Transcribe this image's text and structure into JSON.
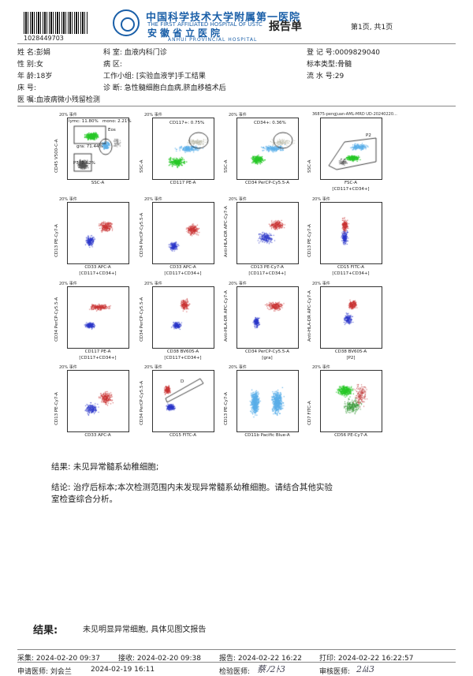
{
  "header": {
    "barcode_number": "1028449703",
    "hospital_name_cn": "中国科学技术大学附属第一医院",
    "hospital_name_en": "THE FIRST AFFILIATED HOSPITAL OF USTC",
    "hospital_name_cn2": "安徽省立医院",
    "hospital_name_en2": "ANHUI PROVINCIAL HOSPITAL",
    "report_title": "报告单",
    "page_info": "第1页, 共1页"
  },
  "patient": {
    "name": "姓   名:彭娟",
    "sex": "性   别:女",
    "age": "年   龄:18岁",
    "bed": "床   号:",
    "advice": "医   嘱:血液病微小残留检测",
    "department": "科         室:   血液内科门诊",
    "ward": "病         区:",
    "work_group": "工作小组:   [实验血液学]手工结果",
    "diagnosis": "诊         断:   急性髓细胞白血病,脐血移植术后",
    "reg_no": "登 记 号:0009829040",
    "specimen_type": "标本类型:骨髓",
    "serial_no": "流 水 号:29"
  },
  "plots": [
    {
      "x": "SSC-A",
      "x2": "",
      "y": "CD45 V500-C-A",
      "top": "20% 事件",
      "gates": [
        "lymc: 11.80%",
        "mono: 2.21%",
        "Eos",
        "gra: 71.44%",
        "P3: 7.62%"
      ]
    },
    {
      "x": "CD117 PE-A",
      "x2": "",
      "y": "SSC-A",
      "top": "20% 事件",
      "gates": [
        "CD117+: 0.75%"
      ]
    },
    {
      "x": "CD34 PerCP-Cy5.5-A",
      "x2": "",
      "y": "SSC-A",
      "top": "20% 事件",
      "gates": [
        "CD34+: 0.36%"
      ]
    },
    {
      "x": "FSC-A",
      "x2": "[CD117+CD34+]",
      "y": "SSC-A",
      "top": "36875-pengjuan-AML-MRD UD-20240220...",
      "gates": [
        "P2"
      ]
    },
    {
      "x": "CD33 APC-A",
      "x2": "[CD117+CD34+]",
      "y": "CD13 PE-Cy7-A",
      "top": "20% 事件",
      "gates": []
    },
    {
      "x": "CD33 APC-A",
      "x2": "[CD117+CD34+]",
      "y": "CD34 PerCP-Cy5.5-A",
      "top": "20% 事件",
      "gates": []
    },
    {
      "x": "CD13 PE-Cy7-A",
      "x2": "[CD117+CD34+]",
      "y": "Anti-HLA-DR APC-Cy7-A",
      "top": "20% 事件",
      "gates": []
    },
    {
      "x": "CD15 FITC-A",
      "x2": "[CD117+CD34+]",
      "y": "CD13 PE-Cy7-A",
      "top": "20% 事件",
      "gates": []
    },
    {
      "x": "CD117 PE-A",
      "x2": "[CD117+CD34+]",
      "y": "CD34 PerCP-Cy5.5-A",
      "top": "20% 事件",
      "gates": []
    },
    {
      "x": "CD38 BV605-A",
      "x2": "[CD117+CD34+]",
      "y": "CD34 PerCP-Cy5.5-A",
      "top": "20% 事件",
      "gates": []
    },
    {
      "x": "CD34 PerCP-Cy5.5-A",
      "x2": "[gra]",
      "y": "Anti-HLA-DR APC-Cy7-A",
      "top": "20% 事件",
      "gates": []
    },
    {
      "x": "CD38 BV605-A",
      "x2": "[P2]",
      "y": "Anti-HLA-DR APC-Cy7-A",
      "top": "20% 事件",
      "gates": []
    },
    {
      "x": "CD33 APC-A",
      "x2": "",
      "y": "CD13 PE-Cy7-A",
      "top": "20% 事件",
      "gates": []
    },
    {
      "x": "CD15 FITC-A",
      "x2": "",
      "y": "CD34 PerCP-Cy5.5-A",
      "top": "20% 事件",
      "gates": [
        "D"
      ]
    },
    {
      "x": "CD11b Pacific Blue-A",
      "x2": "",
      "y": "CD13 PE-Cy7-A",
      "top": "20% 事件",
      "gates": []
    },
    {
      "x": "CD56 PE-Cy7-A",
      "x2": "",
      "y": "CD7 FITC-A",
      "top": "20% 事件",
      "gates": []
    }
  ],
  "results": {
    "result_line": "结果: 未见异常髓系幼稚细胞;",
    "conclusion_line1": "结论: 治疗后标本;本次检测范围内未发现异常髓系幼稚细胞。请结合其他实验",
    "conclusion_line2": "室检查综合分析。"
  },
  "footer": {
    "final_label": "结果:",
    "final_text": "未见明显异常细胞, 具体见图文报告",
    "collect": "采集: 2024-02-20  09:37",
    "receive": "接收: 2024-02-20  09:38",
    "report": "报告: 2024-02-22  16:22",
    "print": "打印: 2024-02-22  16:22:57",
    "requester": "申请医师: 刘会兰",
    "request_time": "2024-02-19  16:11",
    "tester_label": "检验医师:",
    "reviewer_label": "审核医师:"
  },
  "colors": {
    "brand_blue": "#1a5fa8",
    "dot_blue": "#2a35c8",
    "dot_red": "#c83232",
    "dot_lightblue": "#5aaee8",
    "dot_green": "#28c828",
    "dot_gray": "#555555"
  }
}
